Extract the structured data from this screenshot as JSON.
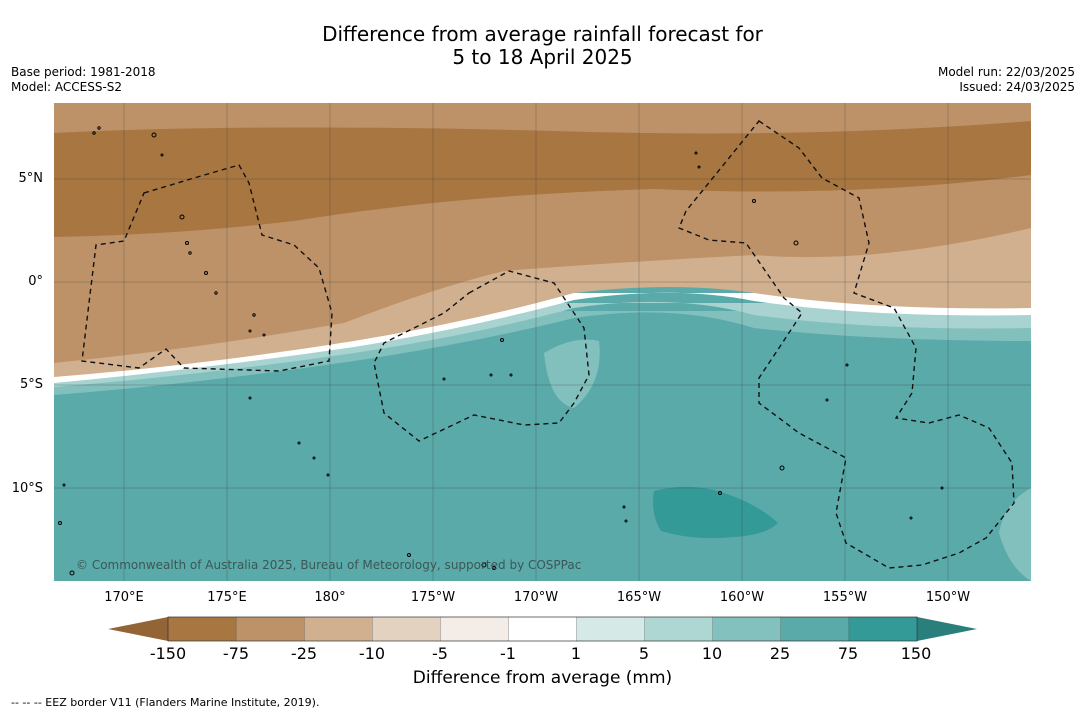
{
  "title": {
    "line1": "Difference from average rainfall forecast for",
    "line2": "5 to 18 April 2025"
  },
  "meta_left": {
    "base_period": "Base period: 1981-2018",
    "model": "Model: ACCESS-S2"
  },
  "meta_right": {
    "model_run": "Model run: 22/03/2025",
    "issued": "Issued: 24/03/2025"
  },
  "map": {
    "lat_labels": [
      "5°N",
      "0°",
      "5°S",
      "10°S"
    ],
    "lon_labels": [
      "170°E",
      "175°E",
      "180°",
      "175°W",
      "170°W",
      "165°W",
      "160°W",
      "155°W",
      "150°W"
    ],
    "copyright": "© Commonwealth of Australia 2025, Bureau of Meteorology, supported by COSPPac",
    "colors": {
      "dry_strong": "#a87640",
      "dry_moderate": "#bd9268",
      "dry_light": "#d1b08f",
      "near_zero": "#ffffff",
      "wet_light": "#a8d3d0",
      "wet_moderate": "#82c0be",
      "wet_strong": "#5aaaaa",
      "wet_extreme": "#349a98"
    }
  },
  "colorbar": {
    "labels": [
      "-150",
      "-75",
      "-25",
      "-10",
      "-5",
      "-1",
      "1",
      "5",
      "10",
      "25",
      "75",
      "150"
    ],
    "colors": [
      "#a87640",
      "#bd9268",
      "#d1b08f",
      "#e4d2c0",
      "#f4ece6",
      "#ffffff",
      "#d5e9e6",
      "#aed6d3",
      "#83c1bf",
      "#5aaaaa",
      "#349a98"
    ],
    "extend_low_color": "#936436",
    "extend_high_color": "#2a7f7d",
    "title": "Difference from average (mm)"
  },
  "footer": "--  --  -- EEZ border V11 (Flanders Marine Institute, 2019)."
}
